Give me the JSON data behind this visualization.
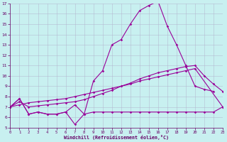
{
  "bg_color": "#c8f0f0",
  "line_color": "#990099",
  "grid_color": "#b0b0cc",
  "xlim": [
    0,
    23
  ],
  "ylim": [
    5,
    17
  ],
  "xticks": [
    0,
    1,
    2,
    3,
    4,
    5,
    6,
    7,
    8,
    9,
    10,
    11,
    12,
    13,
    14,
    15,
    16,
    17,
    18,
    19,
    20,
    21,
    22,
    23
  ],
  "yticks": [
    5,
    6,
    7,
    8,
    9,
    10,
    11,
    12,
    13,
    14,
    15,
    16,
    17
  ],
  "xlabel": "Windchill (Refroidissement éolien,°C)",
  "series": [
    {
      "x": [
        0,
        1,
        2,
        3,
        4,
        5,
        6,
        7,
        8,
        9,
        10,
        11,
        12,
        13,
        14,
        15,
        16,
        17,
        18,
        19,
        20,
        21,
        22
      ],
      "y": [
        7.0,
        7.8,
        6.3,
        6.5,
        6.3,
        6.3,
        6.5,
        7.2,
        6.3,
        9.5,
        10.5,
        13.0,
        13.5,
        15.0,
        16.3,
        16.8,
        17.2,
        14.8,
        13.0,
        11.0,
        9.0,
        8.7,
        8.5
      ]
    },
    {
      "x": [
        0,
        1,
        2,
        3,
        4,
        5,
        6,
        7,
        8,
        9,
        10,
        11,
        12,
        13,
        14,
        15,
        16,
        17,
        18,
        19,
        20,
        21,
        22,
        23
      ],
      "y": [
        7.0,
        7.5,
        7.0,
        7.1,
        7.2,
        7.3,
        7.4,
        7.5,
        7.7,
        8.0,
        8.3,
        8.6,
        9.0,
        9.3,
        9.7,
        10.0,
        10.3,
        10.5,
        10.7,
        10.9,
        11.0,
        10.0,
        9.2,
        8.5
      ]
    },
    {
      "x": [
        0,
        1,
        2,
        3,
        4,
        5,
        6,
        7,
        8,
        9,
        10,
        11,
        12,
        13,
        14,
        15,
        16,
        17,
        18,
        19,
        20,
        23
      ],
      "y": [
        7.0,
        7.2,
        7.4,
        7.5,
        7.6,
        7.7,
        7.8,
        8.0,
        8.2,
        8.4,
        8.6,
        8.8,
        9.0,
        9.2,
        9.5,
        9.7,
        9.9,
        10.1,
        10.3,
        10.5,
        10.7,
        7.0
      ]
    },
    {
      "x": [
        0,
        1,
        2,
        3,
        4,
        5,
        6,
        7,
        8,
        9,
        10,
        11,
        12,
        13,
        14,
        15,
        16,
        17,
        18,
        19,
        20,
        21,
        22,
        23
      ],
      "y": [
        7.0,
        7.8,
        6.3,
        6.5,
        6.3,
        6.3,
        6.5,
        5.3,
        6.3,
        6.5,
        6.5,
        6.5,
        6.5,
        6.5,
        6.5,
        6.5,
        6.5,
        6.5,
        6.5,
        6.5,
        6.5,
        6.5,
        6.5,
        7.0
      ]
    }
  ]
}
